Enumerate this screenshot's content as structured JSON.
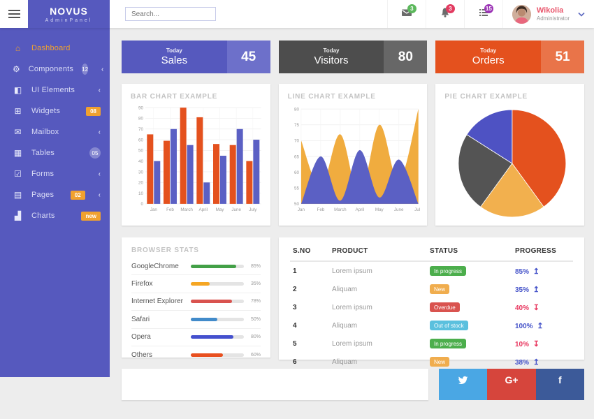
{
  "header": {
    "logo_title": "NOVUS",
    "logo_subtitle": "AdminPanel",
    "search_placeholder": "Search...",
    "icons": [
      {
        "name": "mail",
        "badge": "3",
        "badge_color": "#5cb85c"
      },
      {
        "name": "bell",
        "badge": "3",
        "badge_color": "#e23a60"
      },
      {
        "name": "tasks",
        "badge": "15",
        "badge_color": "#9b33b5"
      }
    ],
    "user": {
      "name": "Wikolia",
      "role": "Administrator"
    }
  },
  "sidebar": {
    "items": [
      {
        "label": "Dashboard",
        "icon": "home",
        "active": true
      },
      {
        "label": "Components",
        "icon": "gears",
        "badge": "12",
        "badge_style": "circle",
        "chevron": true
      },
      {
        "label": "UI Elements",
        "icon": "book",
        "chevron": true
      },
      {
        "label": "Widgets",
        "icon": "grid",
        "badge": "08",
        "badge_style": "square"
      },
      {
        "label": "Mailbox",
        "icon": "envelope",
        "chevron": true
      },
      {
        "label": "Tables",
        "icon": "table",
        "badge": "05",
        "badge_style": "circle"
      },
      {
        "label": "Forms",
        "icon": "check",
        "chevron": true
      },
      {
        "label": "Pages",
        "icon": "file",
        "badge": "02",
        "badge_style": "square",
        "chevron": true
      },
      {
        "label": "Charts",
        "icon": "chart",
        "badge": "new",
        "badge_style": "square"
      }
    ]
  },
  "stats": [
    {
      "period": "Today",
      "label": "Sales",
      "value": "45",
      "color": "#5659be",
      "value_bg": "#6d70ca"
    },
    {
      "period": "Today",
      "label": "Visitors",
      "value": "80",
      "color": "#4d4d4d",
      "value_bg": "#676767"
    },
    {
      "period": "Today",
      "label": "Orders",
      "value": "51",
      "color": "#e4511e",
      "value_bg": "#e97449"
    }
  ],
  "panels": {
    "bar_title": "BAR CHART EXAMPLE",
    "line_title": "LINE CHART EXAMPLE",
    "pie_title": "PIE CHART EXAMPLE",
    "browser_title": "BROWSER STATS"
  },
  "browser_stats": [
    {
      "name": "GoogleChrome",
      "pct": 85,
      "pct_label": "85%",
      "color": "#43a047"
    },
    {
      "name": "Firefox",
      "pct": 35,
      "pct_label": "35%",
      "color": "#f5a623"
    },
    {
      "name": "Internet Explorer",
      "pct": 78,
      "pct_label": "78%",
      "color": "#d9534f"
    },
    {
      "name": "Safari",
      "pct": 50,
      "pct_label": "50%",
      "color": "#428bca"
    },
    {
      "name": "Opera",
      "pct": 80,
      "pct_label": "80%",
      "color": "#4450ce"
    },
    {
      "name": "Others",
      "pct": 60,
      "pct_label": "60%",
      "color": "#e8501f"
    }
  ],
  "table": {
    "headers": [
      "S.NO",
      "PRODUCT",
      "STATUS",
      "PROGRESS"
    ],
    "up_color": "#4553c9",
    "down_color": "#e8375f",
    "rows": [
      {
        "sno": "1",
        "product": "Lorem ipsum",
        "status": "In progress",
        "status_color": "#4cae4c",
        "progress": "85%",
        "trend": "up"
      },
      {
        "sno": "2",
        "product": "Aliquam",
        "status": "New",
        "status_color": "#f0ad4e",
        "progress": "35%",
        "trend": "up"
      },
      {
        "sno": "3",
        "product": "Lorem ipsum",
        "status": "Overdue",
        "status_color": "#d9534f",
        "progress": "40%",
        "trend": "down"
      },
      {
        "sno": "4",
        "product": "Aliquam",
        "status": "Out of stock",
        "status_color": "#5bc0de",
        "progress": "100%",
        "trend": "up"
      },
      {
        "sno": "5",
        "product": "Lorem ipsum",
        "status": "In progress",
        "status_color": "#4cae4c",
        "progress": "10%",
        "trend": "down"
      },
      {
        "sno": "6",
        "product": "Aliquam",
        "status": "New",
        "status_color": "#f0ad4e",
        "progress": "38%",
        "trend": "up"
      }
    ]
  },
  "social": [
    {
      "name": "twitter",
      "color": "#4aa7e4"
    },
    {
      "name": "googleplus",
      "color": "#d6453c",
      "label": "G+"
    },
    {
      "name": "facebook",
      "color": "#3c5a99",
      "label": "f"
    }
  ],
  "chart_data": [
    {
      "type": "bar",
      "title": "BAR CHART EXAMPLE",
      "categories": [
        "Jan",
        "Feb",
        "March",
        "April",
        "May",
        "June",
        "July"
      ],
      "series": [
        {
          "name": "series-orange",
          "color": "#e4511e",
          "values": [
            65,
            59,
            90,
            81,
            56,
            55,
            40
          ]
        },
        {
          "name": "series-purple",
          "color": "#5b60c4",
          "values": [
            40,
            70,
            55,
            20,
            45,
            70,
            60
          ]
        }
      ],
      "ylim": [
        0,
        90
      ],
      "ytick": 10,
      "grid": true
    },
    {
      "type": "area",
      "title": "LINE CHART EXAMPLE",
      "x": [
        "Jan",
        "Feb",
        "March",
        "April",
        "May",
        "June",
        "July"
      ],
      "series": [
        {
          "name": "series-amber",
          "color": "#f0ac3f",
          "values": [
            70,
            55,
            72,
            52,
            75,
            57,
            80
          ]
        },
        {
          "name": "series-purple",
          "color": "#5b60c4",
          "values": [
            50,
            65,
            51,
            67,
            52,
            64,
            50
          ]
        }
      ],
      "ylim": [
        50,
        80
      ],
      "ytick": 5,
      "grid": true
    },
    {
      "type": "pie",
      "title": "PIE CHART EXAMPLE",
      "slices": [
        {
          "name": "orange",
          "value": 40,
          "color": "#e4511e"
        },
        {
          "name": "amber",
          "value": 20,
          "color": "#f2b04e"
        },
        {
          "name": "gray",
          "value": 24,
          "color": "#545454"
        },
        {
          "name": "purple",
          "value": 16,
          "color": "#4e52c3"
        }
      ]
    }
  ]
}
